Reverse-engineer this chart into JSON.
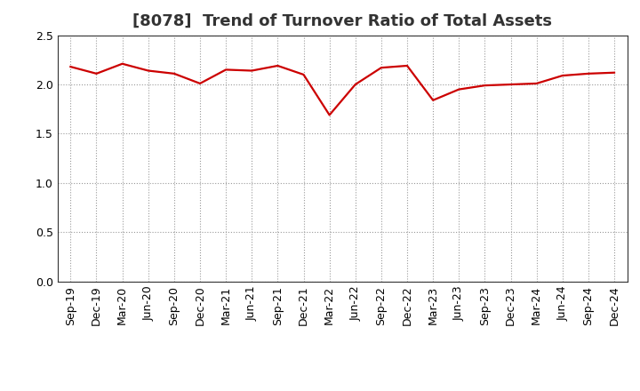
{
  "title": "[8078]  Trend of Turnover Ratio of Total Assets",
  "x_labels": [
    "Sep-19",
    "Dec-19",
    "Mar-20",
    "Jun-20",
    "Sep-20",
    "Dec-20",
    "Mar-21",
    "Jun-21",
    "Sep-21",
    "Dec-21",
    "Mar-22",
    "Jun-22",
    "Sep-22",
    "Dec-22",
    "Mar-23",
    "Jun-23",
    "Sep-23",
    "Dec-23",
    "Mar-24",
    "Jun-24",
    "Sep-24",
    "Dec-24"
  ],
  "y_values": [
    2.18,
    2.11,
    2.21,
    2.14,
    2.11,
    2.01,
    2.15,
    2.14,
    2.19,
    2.1,
    1.69,
    2.0,
    2.17,
    2.19,
    1.84,
    1.95,
    1.99,
    2.0,
    2.01,
    2.09,
    2.11,
    2.12
  ],
  "ylim": [
    0.0,
    2.5
  ],
  "yticks": [
    0.0,
    0.5,
    1.0,
    1.5,
    2.0,
    2.5
  ],
  "line_color": "#cc0000",
  "line_width": 1.6,
  "background_color": "#ffffff",
  "grid_color": "#999999",
  "title_fontsize": 13,
  "title_color": "#333333",
  "tick_fontsize": 9,
  "grid_style": ":"
}
